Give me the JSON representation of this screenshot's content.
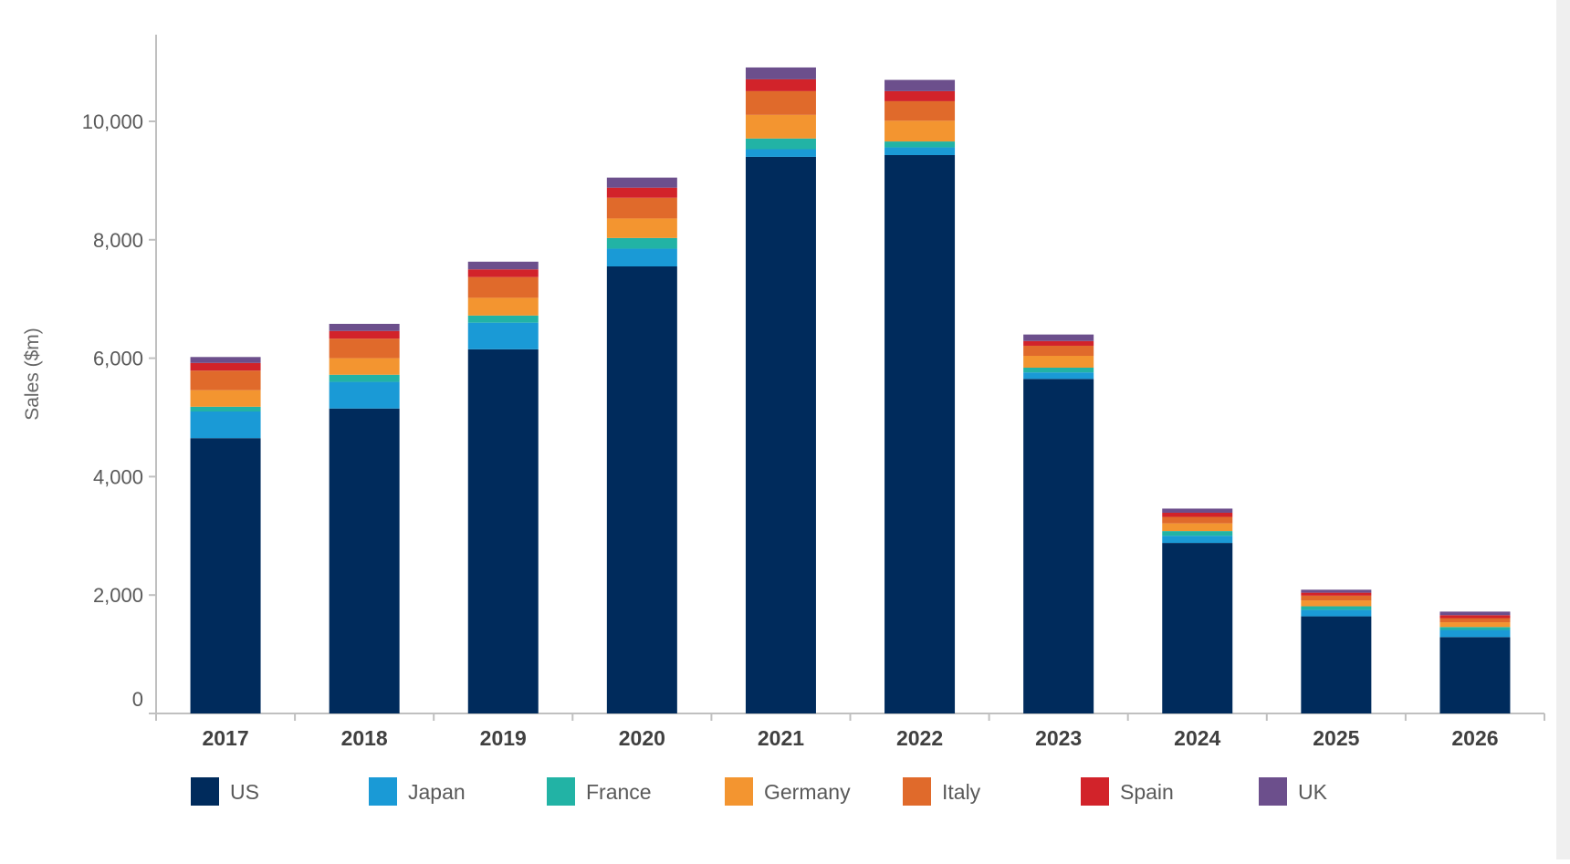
{
  "chart_data": {
    "type": "bar",
    "stacked": true,
    "title": "",
    "xlabel": "",
    "ylabel": "Sales ($m)",
    "ylim": [
      0,
      11500
    ],
    "yticks": [
      0,
      2000,
      4000,
      6000,
      8000,
      10000
    ],
    "ytick_labels": [
      "0",
      "2,000",
      "4,000",
      "6,000",
      "8,000",
      "10,000"
    ],
    "grid": false,
    "legend_position": "bottom",
    "categories": [
      "2017",
      "2018",
      "2019",
      "2020",
      "2021",
      "2022",
      "2023",
      "2024",
      "2025",
      "2026"
    ],
    "series": [
      {
        "name": "US",
        "color": "#002b5c",
        "values": [
          4650,
          5150,
          6150,
          7550,
          9400,
          9430,
          5650,
          2880,
          1640,
          1290
        ]
      },
      {
        "name": "Japan",
        "color": "#1a9ad6",
        "values": [
          450,
          450,
          450,
          300,
          130,
          130,
          110,
          120,
          110,
          120
        ]
      },
      {
        "name": "France",
        "color": "#22b3a5",
        "values": [
          80,
          120,
          120,
          180,
          180,
          100,
          80,
          80,
          60,
          50
        ]
      },
      {
        "name": "Germany",
        "color": "#f39530",
        "values": [
          280,
          280,
          300,
          330,
          400,
          350,
          200,
          130,
          100,
          80
        ]
      },
      {
        "name": "Italy",
        "color": "#e06a2b",
        "values": [
          330,
          330,
          350,
          350,
          400,
          330,
          170,
          110,
          80,
          70
        ]
      },
      {
        "name": "Spain",
        "color": "#d2232a",
        "values": [
          130,
          130,
          130,
          170,
          200,
          170,
          80,
          70,
          50,
          50
        ]
      },
      {
        "name": "UK",
        "color": "#6c4f8c",
        "values": [
          100,
          120,
          130,
          170,
          200,
          190,
          110,
          70,
          50,
          60
        ]
      }
    ]
  }
}
